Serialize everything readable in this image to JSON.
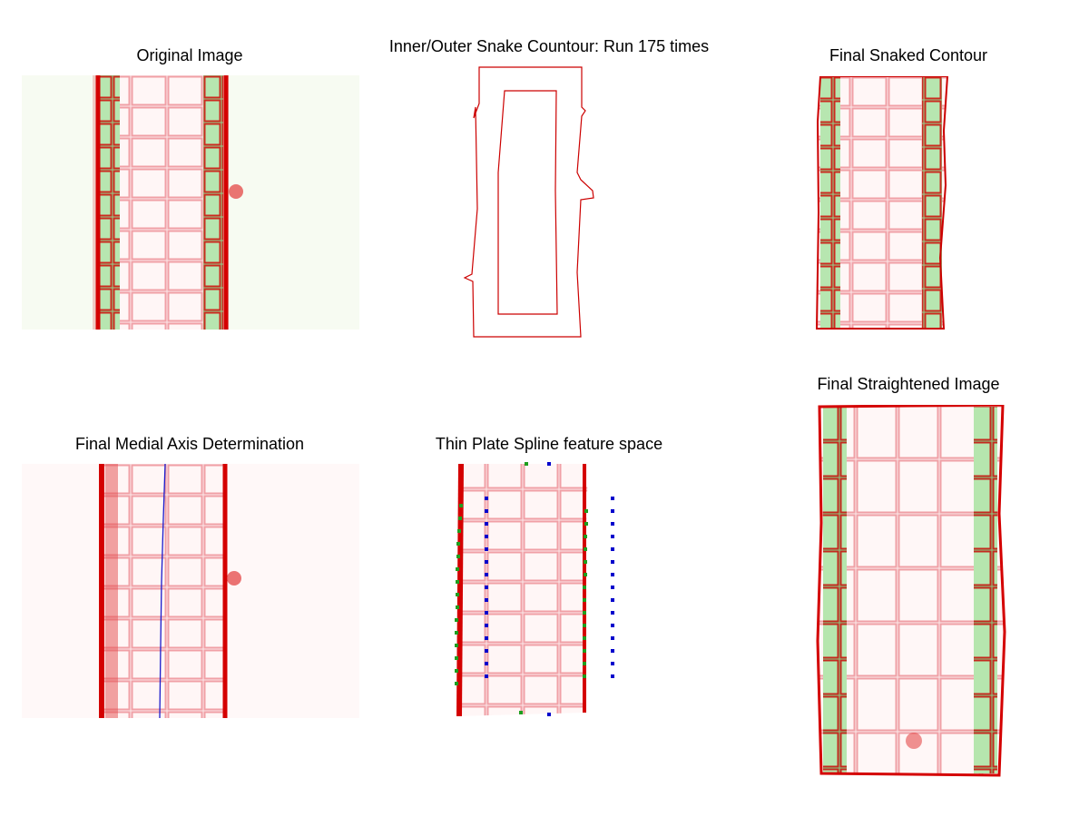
{
  "figure": {
    "panels": [
      {
        "id": "original",
        "title": "Original Image"
      },
      {
        "id": "snake",
        "title": "Inner/Outer Snake Countour: Run 175 times"
      },
      {
        "id": "snaked",
        "title": "Final Snaked Contour"
      },
      {
        "id": "medial",
        "title": "Final Medial Axis Determination"
      },
      {
        "id": "tps",
        "title": "Thin Plate Spline feature space"
      },
      {
        "id": "straightened",
        "title": "Final Straightened Image"
      }
    ],
    "colors": {
      "cell_wall": "#d90000",
      "cytoplasm_green": "#2bb52b",
      "contour": "#cc0000",
      "medial_axis": "#1a1acc",
      "tps_target_points": "#0000cc",
      "tps_source_points": "#1e9e1e"
    }
  }
}
